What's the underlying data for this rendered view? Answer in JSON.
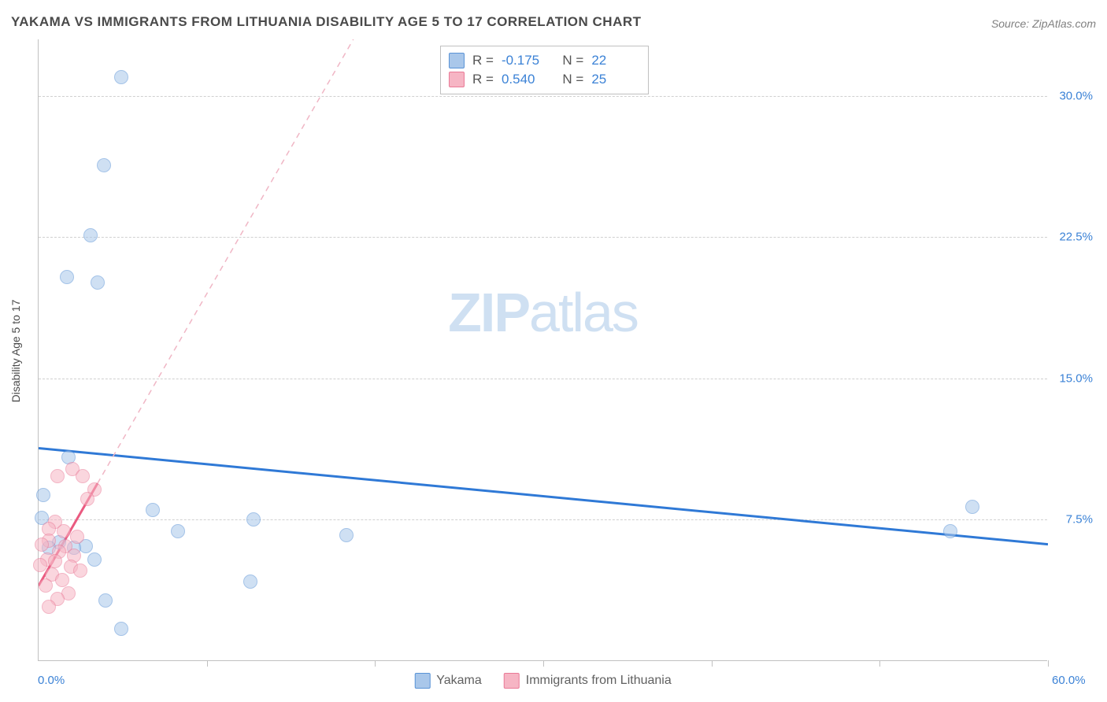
{
  "title": "YAKAMA VS IMMIGRANTS FROM LITHUANIA DISABILITY AGE 5 TO 17 CORRELATION CHART",
  "source": "Source: ZipAtlas.com",
  "y_axis_title": "Disability Age 5 to 17",
  "watermark_zip": "ZIP",
  "watermark_atlas": "atlas",
  "chart": {
    "type": "scatter",
    "background_color": "#ffffff",
    "grid_color": "#d0d0d0",
    "axis_color": "#c0c0c0",
    "xlim": [
      0,
      60
    ],
    "ylim": [
      0,
      33
    ],
    "y_ticks": [
      {
        "v": 7.5,
        "label": "7.5%"
      },
      {
        "v": 15.0,
        "label": "15.0%"
      },
      {
        "v": 22.5,
        "label": "22.5%"
      },
      {
        "v": 30.0,
        "label": "30.0%"
      }
    ],
    "x_ticks_minor": [
      10,
      20,
      30,
      40,
      50,
      60
    ],
    "x_label_min": "0.0%",
    "x_label_max": "60.0%",
    "title_fontsize": 17,
    "label_fontsize": 15,
    "y_axis_title_fontsize": 14,
    "series": [
      {
        "name": "Yakama",
        "color_fill": "#a9c7ea",
        "color_stroke": "#5a93d6",
        "marker_radius": 9,
        "fill_opacity": 0.55,
        "points": [
          {
            "x": 4.9,
            "y": 31.0
          },
          {
            "x": 3.9,
            "y": 26.3
          },
          {
            "x": 3.1,
            "y": 22.6
          },
          {
            "x": 1.7,
            "y": 20.4
          },
          {
            "x": 3.5,
            "y": 20.1
          },
          {
            "x": 1.8,
            "y": 10.8
          },
          {
            "x": 0.3,
            "y": 8.8
          },
          {
            "x": 55.5,
            "y": 8.2
          },
          {
            "x": 6.8,
            "y": 8.0
          },
          {
            "x": 0.2,
            "y": 7.6
          },
          {
            "x": 12.8,
            "y": 7.5
          },
          {
            "x": 54.2,
            "y": 6.9
          },
          {
            "x": 8.3,
            "y": 6.9
          },
          {
            "x": 18.3,
            "y": 6.7
          },
          {
            "x": 1.2,
            "y": 6.3
          },
          {
            "x": 2.8,
            "y": 6.1
          },
          {
            "x": 2.1,
            "y": 6.0
          },
          {
            "x": 0.6,
            "y": 6.0
          },
          {
            "x": 3.3,
            "y": 5.4
          },
          {
            "x": 12.6,
            "y": 4.2
          },
          {
            "x": 4.0,
            "y": 3.2
          },
          {
            "x": 4.9,
            "y": 1.7
          }
        ],
        "trend": {
          "type": "solid",
          "color": "#2f79d6",
          "width": 3,
          "y_at_x0": 11.3,
          "y_at_xmax": 6.2
        }
      },
      {
        "name": "Immigrants from Lithuania",
        "color_fill": "#f6b5c4",
        "color_stroke": "#ea7a97",
        "marker_radius": 9,
        "fill_opacity": 0.55,
        "points": [
          {
            "x": 2.0,
            "y": 10.2
          },
          {
            "x": 1.1,
            "y": 9.8
          },
          {
            "x": 2.6,
            "y": 9.8
          },
          {
            "x": 3.3,
            "y": 9.1
          },
          {
            "x": 2.9,
            "y": 8.6
          },
          {
            "x": 1.0,
            "y": 7.4
          },
          {
            "x": 0.6,
            "y": 7.0
          },
          {
            "x": 1.5,
            "y": 6.9
          },
          {
            "x": 2.3,
            "y": 6.6
          },
          {
            "x": 0.6,
            "y": 6.4
          },
          {
            "x": 0.2,
            "y": 6.2
          },
          {
            "x": 1.6,
            "y": 6.1
          },
          {
            "x": 1.2,
            "y": 5.8
          },
          {
            "x": 2.1,
            "y": 5.6
          },
          {
            "x": 0.5,
            "y": 5.4
          },
          {
            "x": 1.0,
            "y": 5.3
          },
          {
            "x": 0.1,
            "y": 5.1
          },
          {
            "x": 1.9,
            "y": 5.0
          },
          {
            "x": 2.5,
            "y": 4.8
          },
          {
            "x": 0.8,
            "y": 4.6
          },
          {
            "x": 1.4,
            "y": 4.3
          },
          {
            "x": 0.4,
            "y": 4.0
          },
          {
            "x": 1.8,
            "y": 3.6
          },
          {
            "x": 1.1,
            "y": 3.3
          },
          {
            "x": 0.6,
            "y": 2.9
          }
        ],
        "trend": {
          "type": "solid-then-dashed",
          "color_solid": "#ea5a80",
          "color_dashed": "#f0b6c5",
          "width": 3,
          "y_at_x0": 4.0,
          "solid_until_x": 3.5,
          "y_at_xmax": 97.0
        }
      }
    ],
    "stats_box": {
      "rows": [
        {
          "swatch_fill": "#a9c7ea",
          "swatch_stroke": "#5a93d6",
          "r_label": "R =",
          "r_value": "-0.175",
          "n_label": "N =",
          "n_value": "22"
        },
        {
          "swatch_fill": "#f6b5c4",
          "swatch_stroke": "#ea7a97",
          "r_label": "R =",
          "r_value": "0.540",
          "n_label": "N =",
          "n_value": "25"
        }
      ]
    },
    "bottom_legend": [
      {
        "swatch_fill": "#a9c7ea",
        "swatch_stroke": "#5a93d6",
        "label": "Yakama"
      },
      {
        "swatch_fill": "#f6b5c4",
        "swatch_stroke": "#ea7a97",
        "label": "Immigrants from Lithuania"
      }
    ]
  }
}
